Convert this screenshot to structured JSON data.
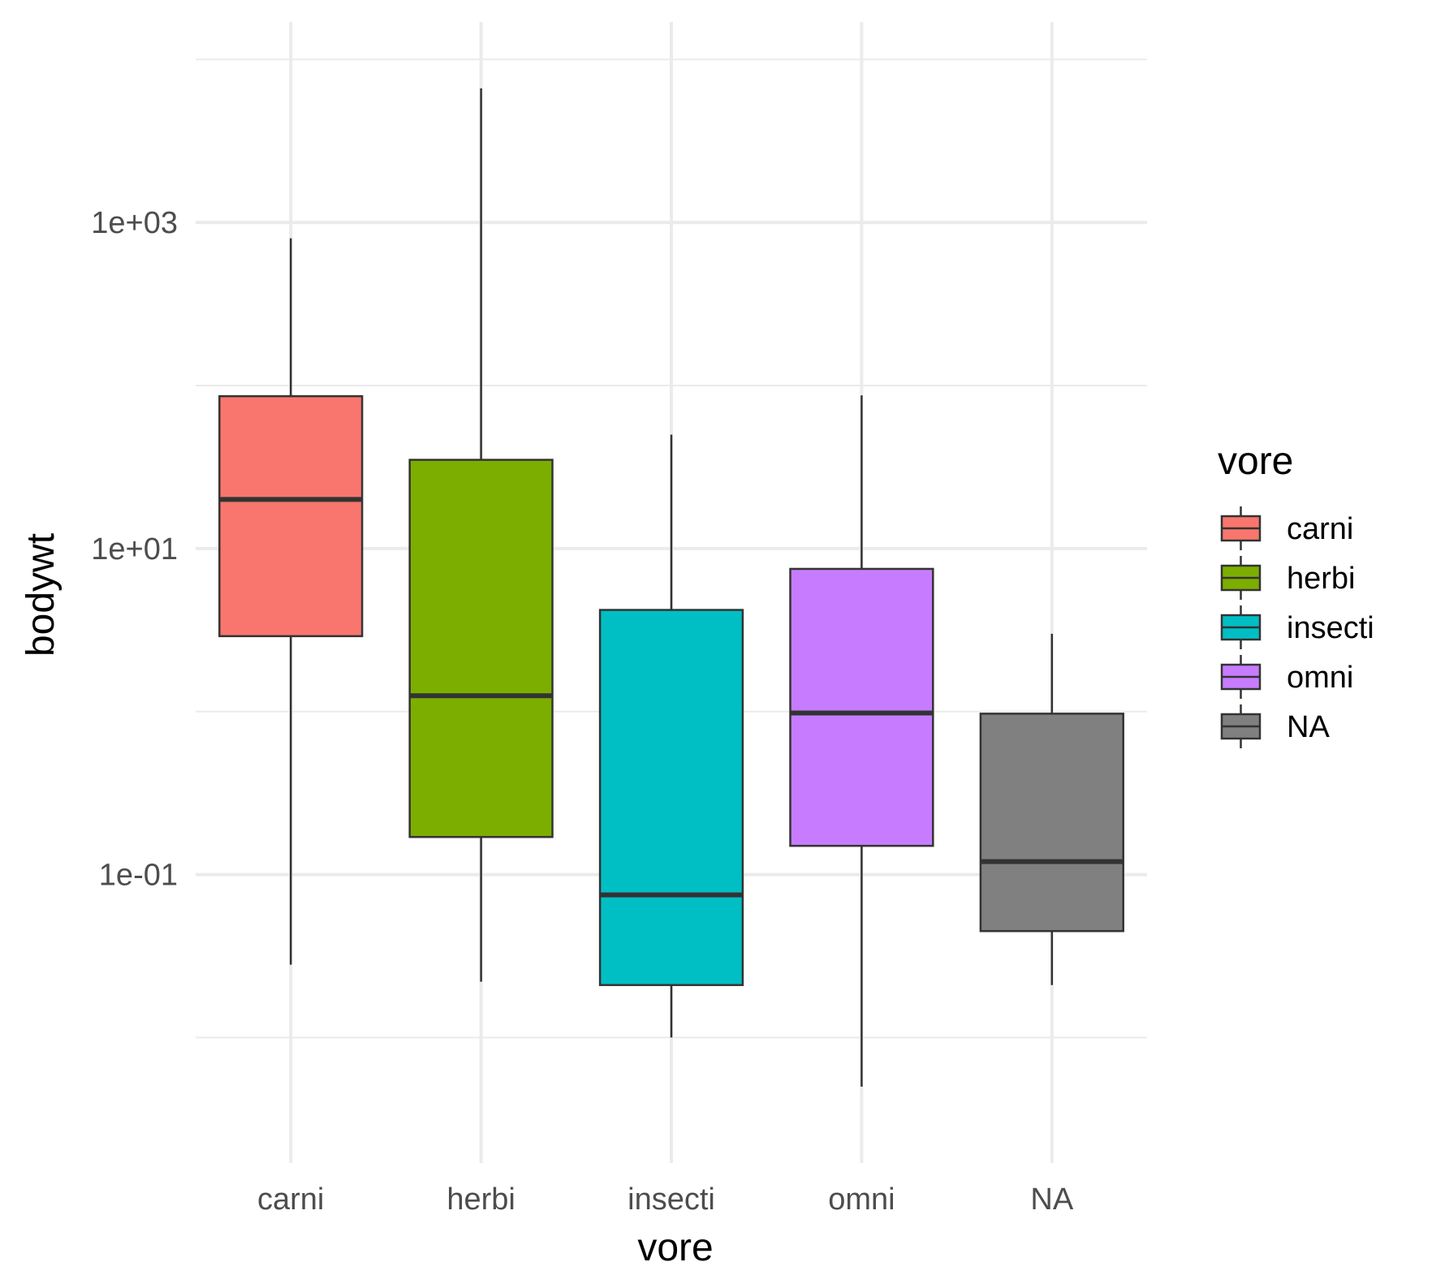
{
  "chart_data": {
    "type": "boxplot",
    "title": "",
    "xlabel": "vore",
    "ylabel": "bodywt",
    "y_scale": "log10",
    "ylim": [
      0.0017,
      17000
    ],
    "y_ticks": [
      0.1,
      10,
      1000
    ],
    "y_tick_labels": [
      "1e-01",
      "1e+01",
      "1e+03"
    ],
    "grid": true,
    "legend": {
      "title": "vore",
      "position": "right"
    },
    "categories": [
      "carni",
      "herbi",
      "insecti",
      "omni",
      "NA"
    ],
    "boxes": [
      {
        "category": "carni",
        "fill": "#F8766D",
        "whisker_low": 0.028,
        "q1": 2.9,
        "median": 20,
        "q3": 86,
        "whisker_high": 800
      },
      {
        "category": "herbi",
        "fill": "#7CAE00",
        "whisker_low": 0.022,
        "q1": 0.17,
        "median": 1.25,
        "q3": 35,
        "whisker_high": 6650
      },
      {
        "category": "insecti",
        "fill": "#00BFC4",
        "whisker_low": 0.01,
        "q1": 0.021,
        "median": 0.075,
        "q3": 4.2,
        "whisker_high": 50
      },
      {
        "category": "omni",
        "fill": "#C77CFF",
        "whisker_low": 0.005,
        "q1": 0.15,
        "median": 0.98,
        "q3": 7.5,
        "whisker_high": 87
      },
      {
        "category": "NA",
        "fill": "#808080",
        "whisker_low": 0.021,
        "q1": 0.045,
        "median": 0.12,
        "q3": 0.97,
        "whisker_high": 3.0
      }
    ]
  }
}
